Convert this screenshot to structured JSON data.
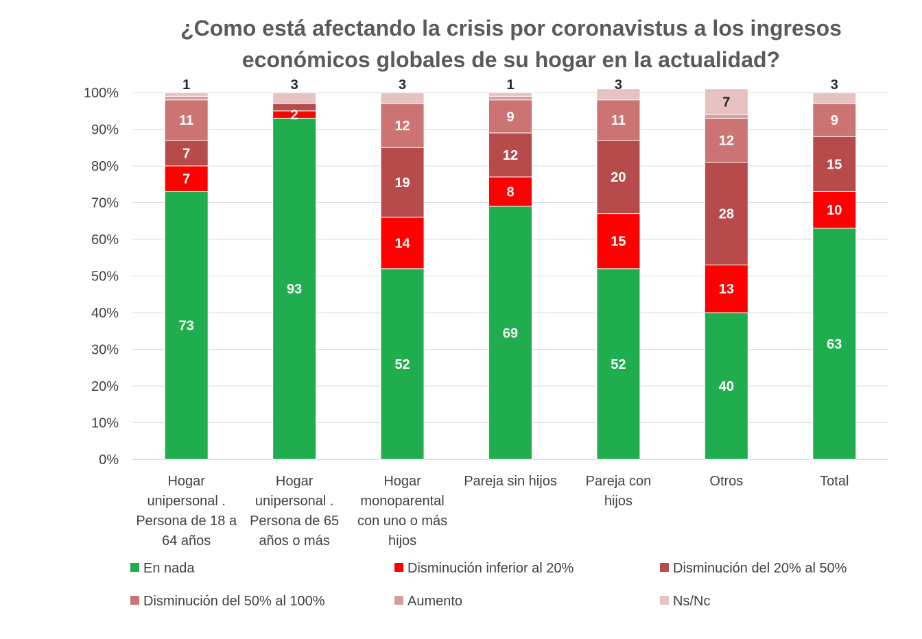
{
  "chart_data": {
    "type": "bar",
    "stacked": true,
    "title": "¿Como está afectando la crisis por coronavistus a los ingresos económicos globales de su hogar en la actualidad?",
    "title_lines": [
      "¿Como está afectando la crisis por coronavistus a los ingresos",
      "económicos globales de su hogar en la actualidad?"
    ],
    "categories": [
      "Hogar unipersonal . Persona de 18 a 64 años",
      "Hogar unipersonal . Persona de 65 años o más",
      "Hogar monoparental con uno o más hijos",
      "Pareja sin hijos",
      "Pareja con hijos",
      "Otros",
      "Total"
    ],
    "category_lines": [
      [
        "Hogar",
        "unipersonal .",
        "Persona de 18 a",
        "64 años"
      ],
      [
        "Hogar",
        "unipersonal .",
        "Persona de 65",
        "años o más"
      ],
      [
        "Hogar",
        "monoparental",
        "con uno o más",
        "hijos"
      ],
      [
        "Pareja sin hijos"
      ],
      [
        "Pareja con",
        "hijos"
      ],
      [
        "Otros"
      ],
      [
        "Total"
      ]
    ],
    "yticks": [
      "0%",
      "10%",
      "20%",
      "30%",
      "40%",
      "50%",
      "60%",
      "70%",
      "80%",
      "90%",
      "100%"
    ],
    "ylim": [
      0,
      100
    ],
    "grid": true,
    "legend_position": "bottom",
    "series": [
      {
        "name": "En nada",
        "color": "#1fad4e",
        "label_color": "#ffffff",
        "values": [
          73,
          93,
          52,
          69,
          52,
          40,
          63
        ]
      },
      {
        "name": "Disminución inferior al 20%",
        "color": "#ff0000",
        "label_color": "#ffffff",
        "values": [
          7,
          2,
          14,
          8,
          15,
          13,
          10
        ]
      },
      {
        "name": "Disminución del 20% al 50%",
        "color": "#b74b4b",
        "label_color": "#ffffff",
        "values": [
          7,
          2,
          19,
          12,
          20,
          28,
          15
        ]
      },
      {
        "name": "Disminución del 50% al 100%",
        "color": "#cc7474",
        "label_color": "#ffffff",
        "values": [
          11,
          0,
          12,
          9,
          11,
          12,
          9
        ]
      },
      {
        "name": "Aumento",
        "color": "#d89c9c",
        "label_color": "#ffffff",
        "values": [
          1,
          0,
          0,
          1,
          0,
          1,
          0
        ]
      },
      {
        "name": "Ns/Nc",
        "color": "#e6c2c2",
        "label_color": "#262626",
        "values": [
          1,
          3,
          3,
          1,
          3,
          7,
          3
        ]
      }
    ],
    "data_labels": [
      [
        "73",
        "93",
        "52",
        "69",
        "52",
        "40",
        "63"
      ],
      [
        "7",
        "2",
        "14",
        "8",
        "15",
        "13",
        "10"
      ],
      [
        "7",
        "",
        "19",
        "12",
        "20",
        "28",
        "15"
      ],
      [
        "11",
        "",
        "12",
        "9",
        "11",
        "12",
        "9"
      ],
      [
        "",
        "",
        "",
        "",
        "",
        "",
        ""
      ],
      [
        "1",
        "3",
        "3",
        "1",
        "3",
        "7",
        "3"
      ]
    ]
  }
}
